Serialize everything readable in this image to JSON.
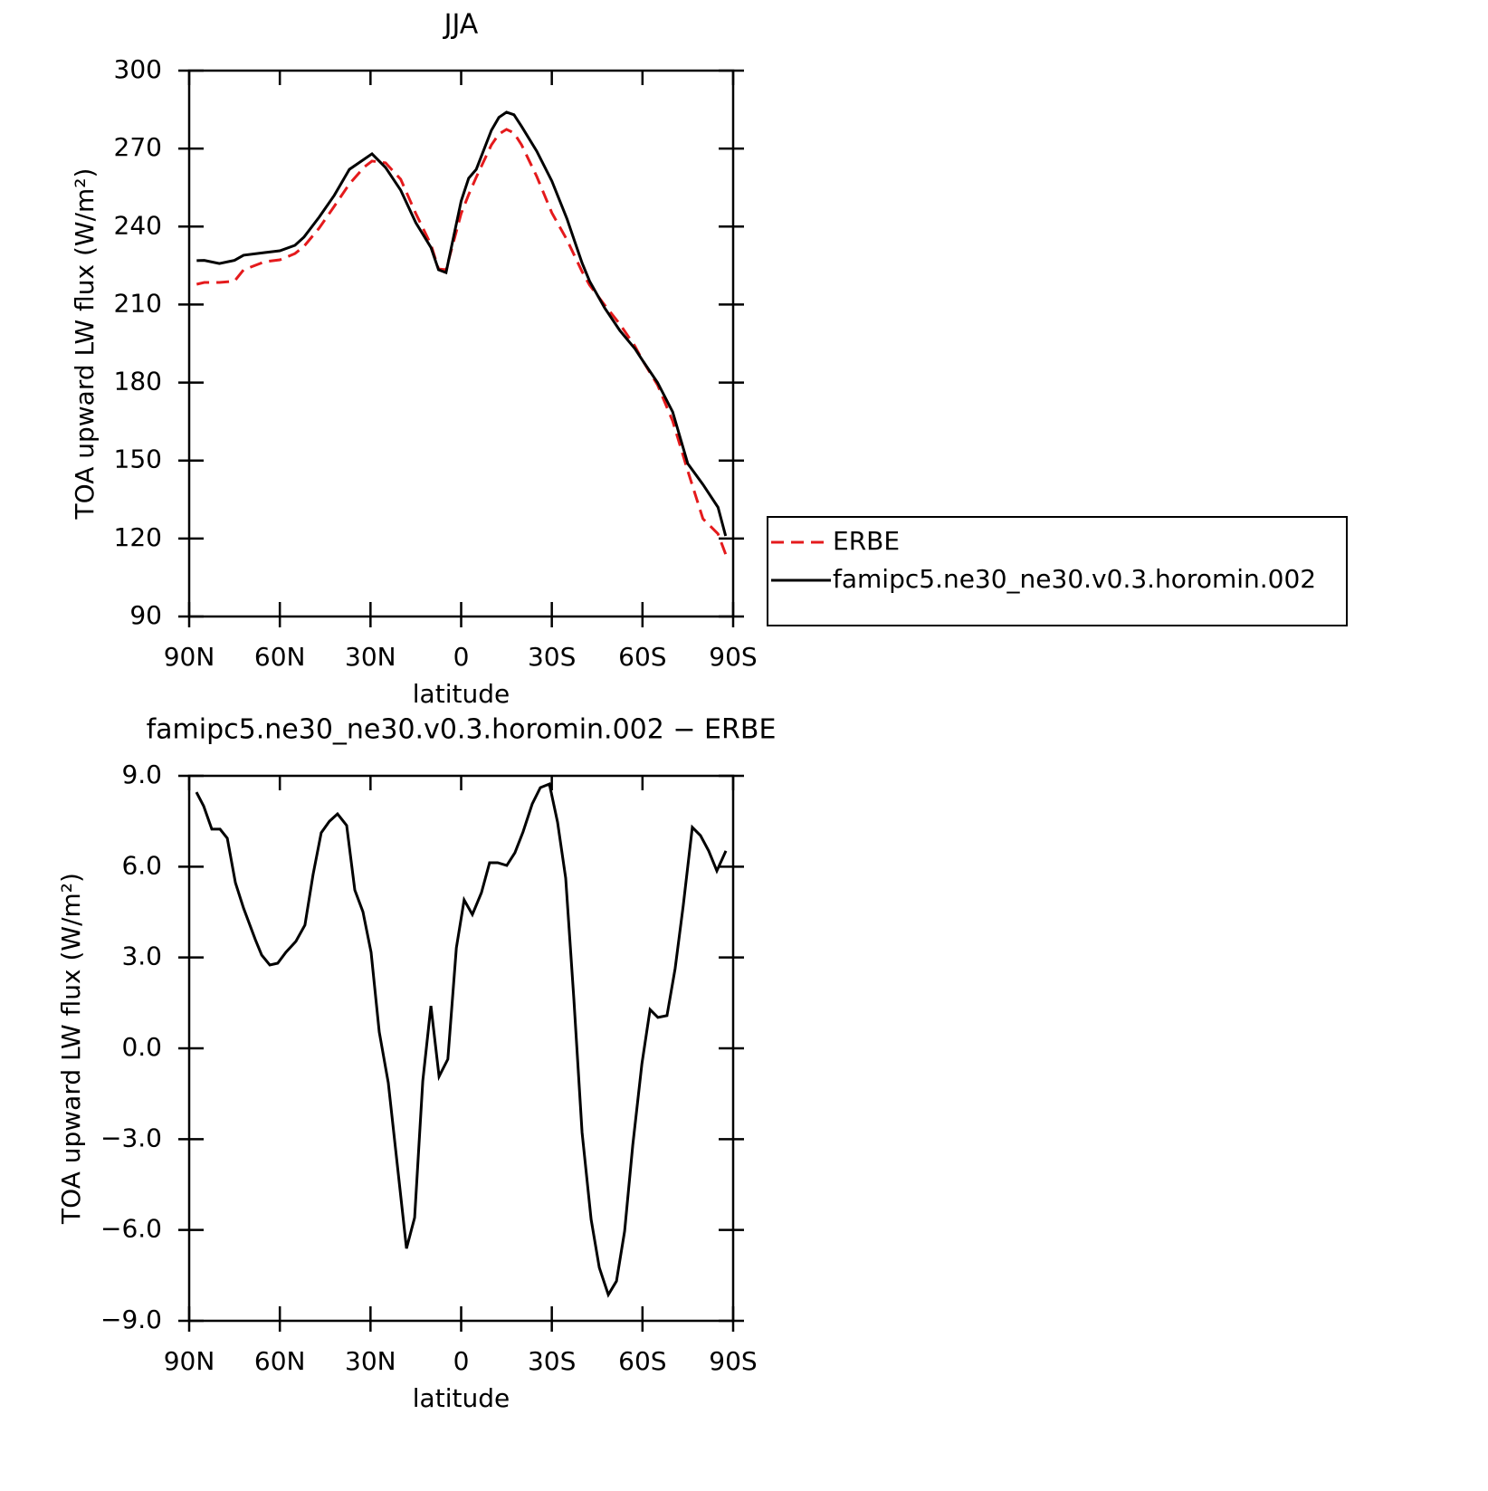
{
  "chart_data": [
    {
      "type": "line",
      "title": "JJA",
      "xlabel": "latitude",
      "ylabel": "TOA upward LW flux (W/m²)",
      "x": [
        87.5,
        85,
        80,
        75,
        72,
        65,
        60,
        55,
        52,
        47,
        42,
        37,
        32,
        29.5,
        25,
        20,
        15,
        10,
        7.5,
        5,
        0,
        -2.5,
        -5,
        -10,
        -12.5,
        -15,
        -17.5,
        -20,
        -25,
        -30,
        -35,
        -40,
        -42.5,
        -47.5,
        -52.5,
        -57.5,
        -60,
        -65,
        -70,
        -75,
        -80,
        -85,
        -87.5
      ],
      "series": [
        {
          "name": "ERBE",
          "color": "#e41a1c",
          "dashed": true,
          "values": [
            217.8,
            218.5,
            218.5,
            219,
            223.4,
            226.5,
            227.2,
            229.6,
            232.4,
            239.4,
            247.8,
            256.4,
            263,
            265.2,
            264.5,
            258.2,
            245,
            233.1,
            223.7,
            223.4,
            245,
            252.3,
            259,
            271.4,
            275.6,
            277.4,
            276,
            271.4,
            259.3,
            245.3,
            234.9,
            222.7,
            217.5,
            209.8,
            202.5,
            194,
            188.6,
            179.1,
            165.2,
            146,
            127.6,
            121.8,
            114
          ]
        },
        {
          "name": "famipc5.ne30_ne30.v0.3.horomin.002",
          "color": "#000000",
          "dashed": false,
          "values": [
            226.9,
            227,
            225.8,
            227,
            229,
            230,
            230.7,
            232.8,
            236,
            243.6,
            252,
            262,
            266,
            268,
            262.7,
            254,
            241.5,
            232,
            223.4,
            222.3,
            249.8,
            258.6,
            262,
            277,
            282,
            284,
            283,
            278.5,
            269,
            257.5,
            243,
            226,
            219,
            208.7,
            200,
            193,
            188.6,
            180,
            168.7,
            148.8,
            140.8,
            132,
            121
          ]
        }
      ],
      "xlim": [
        90,
        -90
      ],
      "xticks": [
        {
          "value": 90,
          "label": "90N"
        },
        {
          "value": 60,
          "label": "60N"
        },
        {
          "value": 30,
          "label": "30N"
        },
        0,
        {
          "value": -30,
          "label": "30S"
        },
        {
          "value": -60,
          "label": "60S"
        },
        {
          "value": -90,
          "label": "90S"
        }
      ],
      "ylim": [
        90,
        300
      ],
      "yticks": [
        90,
        120,
        150,
        180,
        210,
        240,
        270,
        300
      ],
      "legend": "right"
    },
    {
      "type": "line",
      "title": "famipc5.ne30_ne30.v0.3.horomin.002 − ERBE",
      "xlabel": "latitude",
      "ylabel": "TOA upward LW flux (W/m²)",
      "x": [
        87.6,
        85.2,
        82.5,
        79.8,
        77.4,
        74.7,
        72,
        68.1,
        66,
        63.3,
        60.7,
        58,
        54.7,
        51.7,
        49,
        46.3,
        43.6,
        40.9,
        37.9,
        35.2,
        32.5,
        29.8,
        27.1,
        24.1,
        20.8,
        18.1,
        15.4,
        12.7,
        10,
        7.3,
        4.4,
        1.6,
        -1,
        -3.7,
        -6.7,
        -9.4,
        -12.1,
        -15.1,
        -17.8,
        -20.5,
        -23.5,
        -26.2,
        -29.2,
        -31.9,
        -34.6,
        -37.3,
        -40,
        -43,
        -45.7,
        -48.7,
        -51.4,
        -54.1,
        -56.8,
        -59.8,
        -62.5,
        -65.1,
        -68.1,
        -70.8,
        -73.5,
        -76.5,
        -79.2,
        -81.9,
        -84.6,
        -87.6
      ],
      "series": [
        {
          "name": "famipc5.ne30_ne30.v0.3.horomin.002 − ERBE",
          "color": "#000000",
          "dashed": false,
          "values": [
            8.46,
            8.0,
            7.24,
            7.24,
            6.94,
            5.47,
            4.63,
            3.59,
            3.08,
            2.75,
            2.81,
            3.17,
            3.53,
            4.07,
            5.74,
            7.12,
            7.5,
            7.74,
            7.36,
            5.23,
            4.51,
            3.17,
            0.54,
            -1.14,
            -4.16,
            -6.61,
            -5.59,
            -1.08,
            1.4,
            -0.93,
            -0.36,
            3.32,
            4.9,
            4.42,
            5.14,
            6.13,
            6.13,
            6.04,
            6.46,
            7.15,
            8.07,
            8.61,
            8.73,
            7.47,
            5.62,
            1.64,
            -2.78,
            -5.65,
            -7.24,
            -8.14,
            -7.69,
            -6.04,
            -3.2,
            -0.51,
            1.28,
            1.02,
            1.08,
            2.63,
            4.72,
            7.3,
            7.03,
            6.52,
            5.86,
            6.52
          ]
        }
      ],
      "xlim": [
        90,
        -90
      ],
      "xticks": [
        {
          "value": 90,
          "label": "90N"
        },
        {
          "value": 60,
          "label": "60N"
        },
        {
          "value": 30,
          "label": "30N"
        },
        0,
        {
          "value": -30,
          "label": "30S"
        },
        {
          "value": -60,
          "label": "60S"
        },
        {
          "value": -90,
          "label": "90S"
        }
      ],
      "ylim": [
        -9,
        9
      ],
      "yticks": [
        {
          "value": -9,
          "label": "−9.0"
        },
        {
          "value": -6,
          "label": "−6.0"
        },
        {
          "value": -3,
          "label": "−3.0"
        },
        {
          "value": 0,
          "label": "0.0"
        },
        {
          "value": 3,
          "label": "3.0"
        },
        {
          "value": 6,
          "label": "6.0"
        },
        {
          "value": 9,
          "label": "9.0"
        }
      ]
    }
  ]
}
